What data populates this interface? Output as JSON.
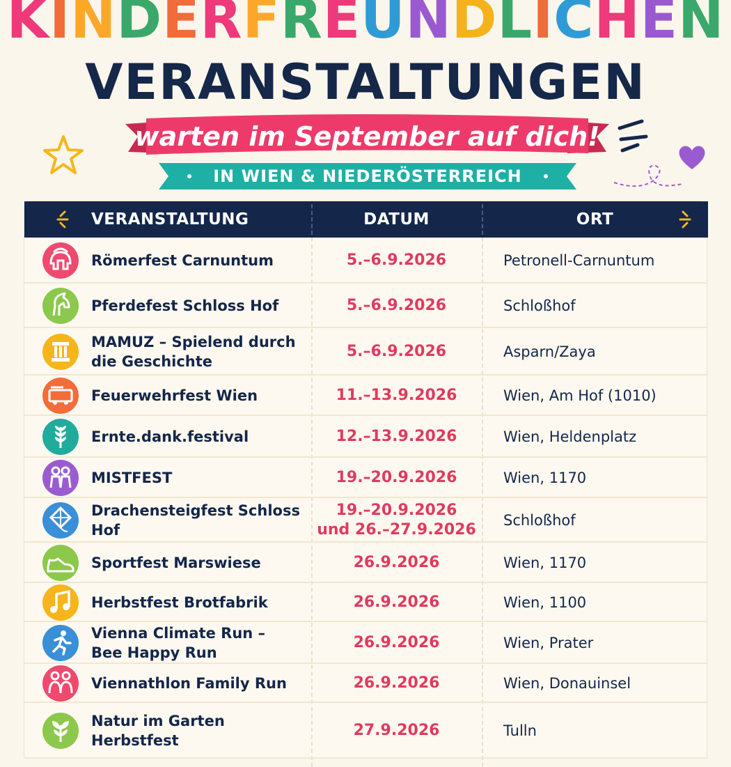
{
  "header": {
    "title_line1": "KINDERFREUNDLICHEN",
    "title_line1_colors": [
      "#ee3a7a",
      "#f26b3a",
      "#fba82a",
      "#3aa86a",
      "#f26b3a",
      "#ee3a7a",
      "#fba82a",
      "#3aa86a",
      "#ee3a7a",
      "#2f9bd6",
      "#9b59d0",
      "#f6b21a",
      "#3aa86a",
      "#f26b3a",
      "#2f9bd6",
      "#ee3a7a",
      "#9b59d0",
      "#3aa86a"
    ],
    "title_line2": "VERANSTALTUNGEN",
    "ribbon_text": "warten im September auf dich!",
    "sub_ribbon_text": "IN WIEN & NIEDERÖSTERREICH"
  },
  "colors": {
    "navy": "#14264a",
    "pink_ribbon": "#ee3a6a",
    "teal_ribbon": "#1fb0a5",
    "date_red": "#e03a5f",
    "background": "#fbf6ec"
  },
  "table": {
    "columns": [
      "VERANSTALTUNG",
      "DATUM",
      "ORT"
    ],
    "rows": [
      {
        "icon": "roman-helmet-icon",
        "icon_color": "#ee4a6e",
        "event": "Römerfest Carnuntum",
        "date": "5.–6.9.2026",
        "place": "Petronell-Carnuntum"
      },
      {
        "icon": "horse-icon",
        "icon_color": "#8cc84b",
        "event": "Pferdefest Schloss Hof",
        "date": "5.–6.9.2026",
        "place": "Schloßhof"
      },
      {
        "icon": "column-icon",
        "icon_color": "#f7b51c",
        "event": "MAMUZ – Spielend durch die Geschichte",
        "date": "5.–6.9.2026",
        "place": "Asparn/Zaya"
      },
      {
        "icon": "fire-truck-icon",
        "icon_color": "#f36c3a",
        "event": "Feuerwehrfest Wien",
        "date": "11.–13.9.2026",
        "place": "Wien, Am Hof (1010)"
      },
      {
        "icon": "wheat-icon",
        "icon_color": "#20ab9d",
        "event": "Ernte.dank.festival",
        "date": "12.–13.9.2026",
        "place": "Wien, Heldenplatz"
      },
      {
        "icon": "children-icon",
        "icon_color": "#9b5bd0",
        "event": "MISTFEST",
        "date": "19.–20.9.2026",
        "place": "Wien, 1170"
      },
      {
        "icon": "kite-icon",
        "icon_color": "#3a8fd6",
        "event": "Drachensteigfest Schloss Hof",
        "date": "19.–20.9.2026",
        "date2": "und 26.–27.9.2026",
        "place": "Schloßhof"
      },
      {
        "icon": "sneaker-icon",
        "icon_color": "#8cc84b",
        "event": "Sportfest Marswiese",
        "date": "26.9.2026",
        "place": "Wien, 1170"
      },
      {
        "icon": "music-note-icon",
        "icon_color": "#f7b51c",
        "event": "Herbstfest Brotfabrik",
        "date": "26.9.2026",
        "place": "Wien, 1100"
      },
      {
        "icon": "runner-icon",
        "icon_color": "#3a8fd6",
        "event": "Vienna Climate Run – Bee Happy Run",
        "date": "26.9.2026",
        "place": "Wien, Prater"
      },
      {
        "icon": "family-icon",
        "icon_color": "#ee4a6e",
        "event": "Viennathlon Family Run",
        "date": "26.9.2026",
        "place": "Wien, Donauinsel"
      },
      {
        "icon": "leaf-icon",
        "icon_color": "#8cc84b",
        "event": "Natur im Garten Herbstfest",
        "date": "27.9.2026",
        "place": "Tulln"
      }
    ]
  }
}
